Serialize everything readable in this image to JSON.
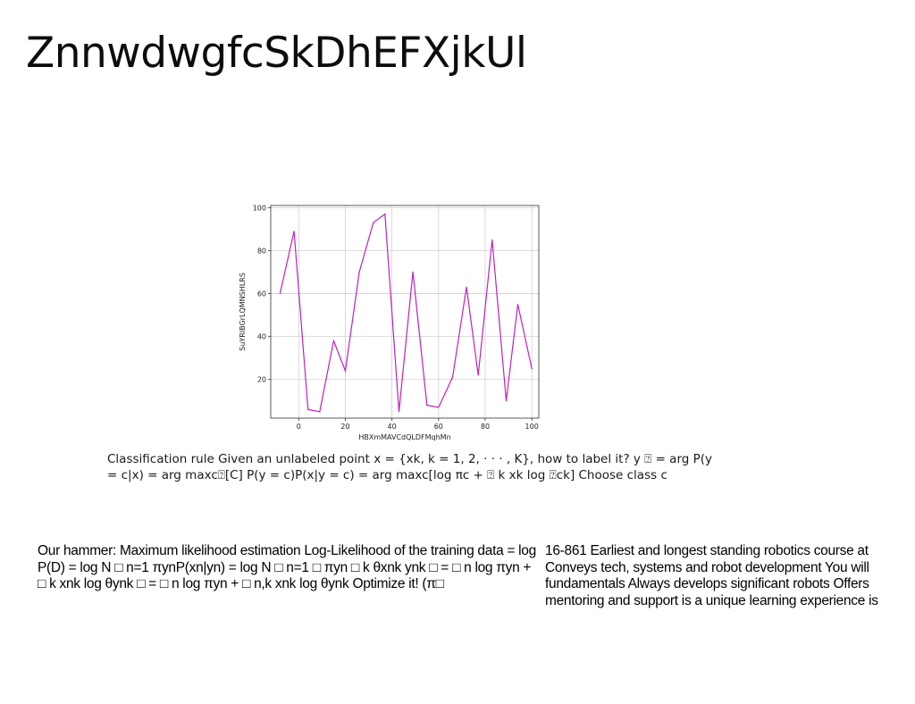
{
  "slide": {
    "title": "ZnnwdwgfcSkDhEFXjkUl"
  },
  "chart_data": {
    "type": "line",
    "xlabel": "HBXmMAVCdQLDFMqhMn",
    "ylabel": "SuYRIBGrLQMNSHLRS",
    "xlim": [
      -12,
      103
    ],
    "ylim": [
      2,
      101
    ],
    "x_ticks": [
      0,
      20,
      40,
      60,
      80,
      100
    ],
    "y_ticks": [
      20,
      40,
      60,
      80,
      100
    ],
    "grid": true,
    "line_color": "#c020c0",
    "series": [
      {
        "x": [
          -8,
          -2,
          4,
          9,
          15,
          20,
          26,
          32,
          37,
          43,
          49,
          55,
          60,
          66,
          72,
          77,
          83,
          89,
          94,
          100
        ],
        "values": [
          60,
          89,
          6,
          5,
          38,
          24,
          70,
          93,
          97,
          5,
          70,
          8,
          7,
          21,
          63,
          22,
          85,
          10,
          55,
          25
        ]
      }
    ]
  },
  "caption": {
    "text": "Classification rule Given an unlabeled point x = {xk, k = 1, 2, · · · , K}, how to label it? y ⍰ = arg P(y = c|x) = arg maxc⍰[C] P(y = c)P(x|y = c) = arg maxc[log πc + ⍰ k xk log ⍰ck] Choose class c"
  },
  "body_left": {
    "text": "Our hammer: Maximum likelihood estimation Log-Likelihood of the training data = log P(D) = log N □ n=1 πynP(xn|yn) = log N □ n=1 □ πyn □ k θxnk ynk □ = □ n log πyn + □ k xnk log θynk □ = □ n log πyn + □ n,k xnk log θynk Optimize it! (π□"
  },
  "body_right": {
    "text": "16-861 Earliest and longest standing robotics course at Conveys tech, systems and robot development You will fundamentals Always develops significant robots Offers mentoring and support is a unique learning experience is"
  }
}
